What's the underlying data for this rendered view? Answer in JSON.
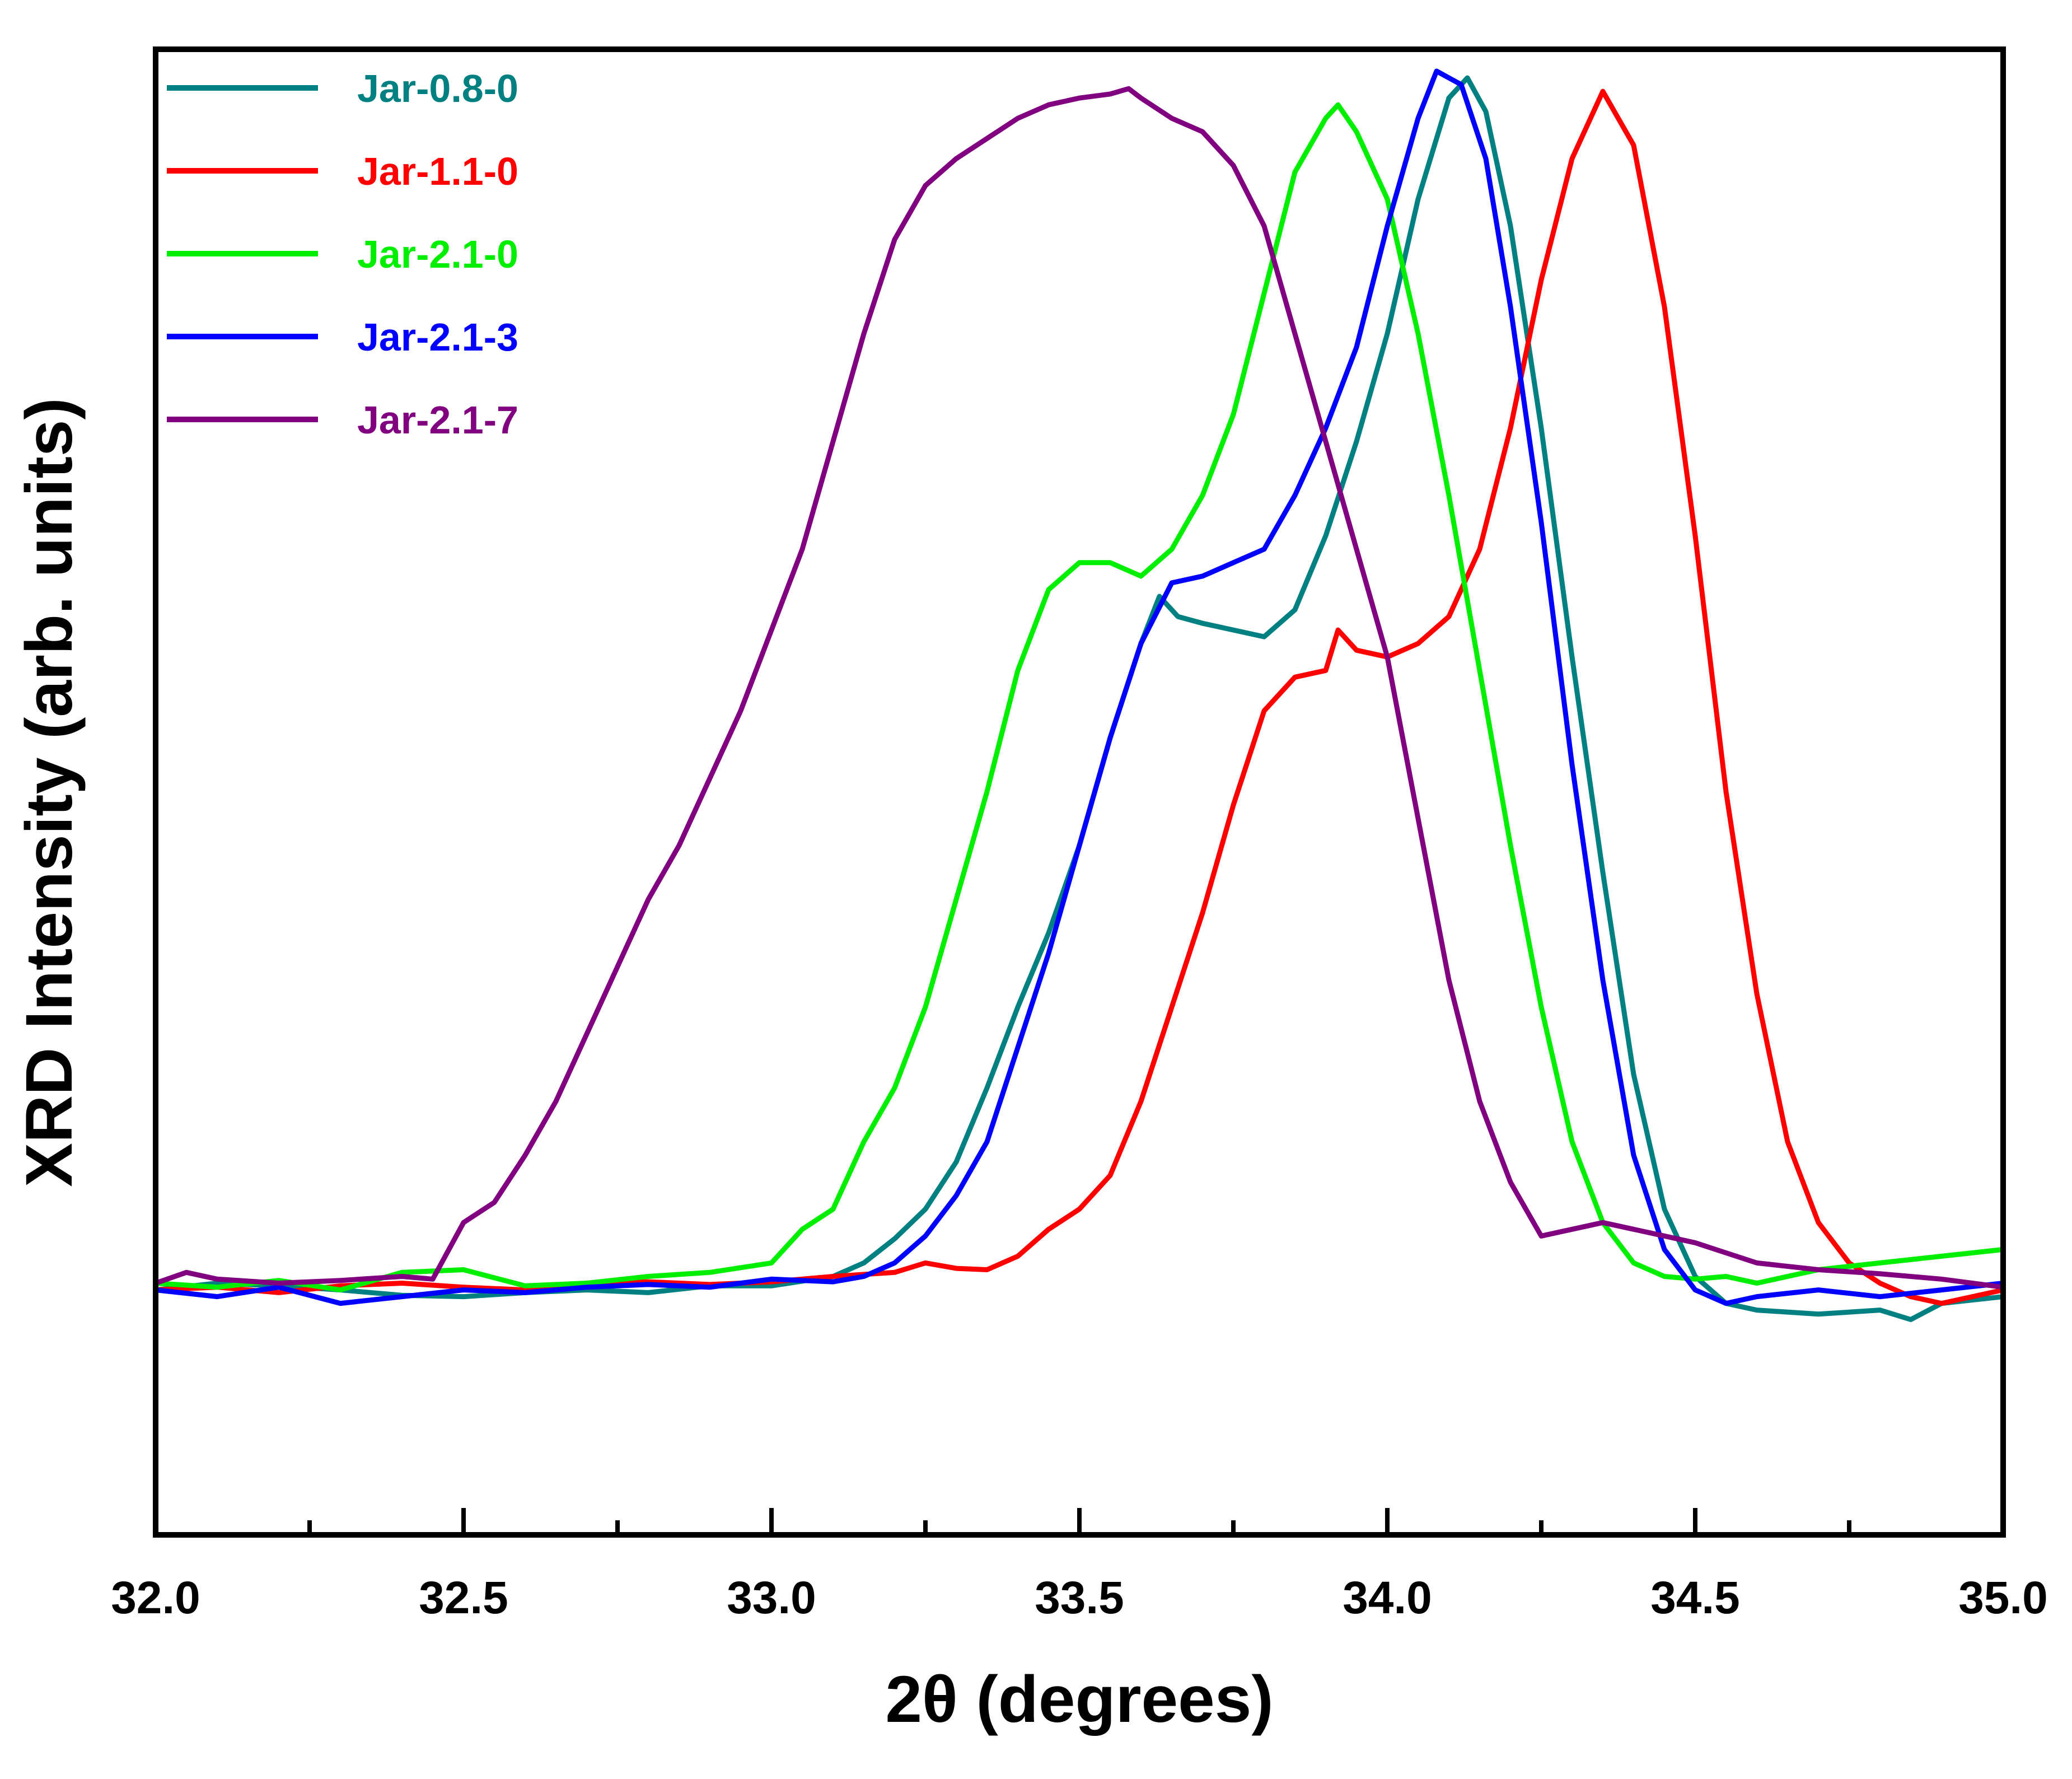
{
  "chart_data": {
    "type": "line",
    "title": "",
    "xlabel": "2θ (degrees)",
    "ylabel": "XRD Intensity (arb. units)",
    "xlim": [
      32.0,
      35.0
    ],
    "ylim": [
      0,
      1
    ],
    "x_ticks": [
      "32.0",
      "32.5",
      "33.0",
      "33.5",
      "34.0",
      "34.5",
      "35.0"
    ],
    "minor_ticks": [
      32.25,
      32.75,
      33.25,
      33.75,
      34.25,
      34.75
    ],
    "y_ticks": [],
    "grid": false,
    "legend_position": "top-left",
    "series": [
      {
        "name": "Jar-0.8-0",
        "color": "#008080",
        "points": [
          [
            32.0,
            0.09
          ],
          [
            32.1,
            0.095
          ],
          [
            32.2,
            0.093
          ],
          [
            32.3,
            0.09
          ],
          [
            32.4,
            0.086
          ],
          [
            32.5,
            0.085
          ],
          [
            32.6,
            0.088
          ],
          [
            32.7,
            0.09
          ],
          [
            32.8,
            0.088
          ],
          [
            32.9,
            0.093
          ],
          [
            33.0,
            0.093
          ],
          [
            33.1,
            0.1
          ],
          [
            33.15,
            0.11
          ],
          [
            33.2,
            0.128
          ],
          [
            33.25,
            0.15
          ],
          [
            33.3,
            0.185
          ],
          [
            33.35,
            0.24
          ],
          [
            33.4,
            0.3
          ],
          [
            33.45,
            0.355
          ],
          [
            33.5,
            0.42
          ],
          [
            33.55,
            0.5
          ],
          [
            33.6,
            0.57
          ],
          [
            33.63,
            0.605
          ],
          [
            33.66,
            0.59
          ],
          [
            33.7,
            0.585
          ],
          [
            33.75,
            0.58
          ],
          [
            33.8,
            0.575
          ],
          [
            33.85,
            0.595
          ],
          [
            33.9,
            0.65
          ],
          [
            33.95,
            0.72
          ],
          [
            34.0,
            0.8
          ],
          [
            34.05,
            0.9
          ],
          [
            34.1,
            0.975
          ],
          [
            34.13,
            0.99
          ],
          [
            34.16,
            0.965
          ],
          [
            34.2,
            0.88
          ],
          [
            34.25,
            0.73
          ],
          [
            34.3,
            0.56
          ],
          [
            34.35,
            0.4
          ],
          [
            34.4,
            0.25
          ],
          [
            34.45,
            0.15
          ],
          [
            34.5,
            0.1
          ],
          [
            34.55,
            0.08
          ],
          [
            34.6,
            0.075
          ],
          [
            34.7,
            0.072
          ],
          [
            34.8,
            0.075
          ],
          [
            34.85,
            0.068
          ],
          [
            34.9,
            0.08
          ],
          [
            35.0,
            0.085
          ]
        ]
      },
      {
        "name": "Jar-1.1-0",
        "color": "#ff0000",
        "points": [
          [
            32.0,
            0.09
          ],
          [
            32.1,
            0.092
          ],
          [
            32.2,
            0.088
          ],
          [
            32.3,
            0.093
          ],
          [
            32.4,
            0.095
          ],
          [
            32.5,
            0.092
          ],
          [
            32.6,
            0.09
          ],
          [
            32.7,
            0.095
          ],
          [
            32.8,
            0.096
          ],
          [
            32.9,
            0.094
          ],
          [
            33.0,
            0.096
          ],
          [
            33.1,
            0.1
          ],
          [
            33.2,
            0.103
          ],
          [
            33.25,
            0.11
          ],
          [
            33.3,
            0.106
          ],
          [
            33.35,
            0.105
          ],
          [
            33.4,
            0.115
          ],
          [
            33.45,
            0.135
          ],
          [
            33.5,
            0.15
          ],
          [
            33.55,
            0.175
          ],
          [
            33.6,
            0.23
          ],
          [
            33.65,
            0.3
          ],
          [
            33.7,
            0.37
          ],
          [
            33.75,
            0.45
          ],
          [
            33.8,
            0.52
          ],
          [
            33.85,
            0.545
          ],
          [
            33.9,
            0.55
          ],
          [
            33.92,
            0.58
          ],
          [
            33.95,
            0.565
          ],
          [
            34.0,
            0.56
          ],
          [
            34.05,
            0.57
          ],
          [
            34.1,
            0.59
          ],
          [
            34.15,
            0.64
          ],
          [
            34.2,
            0.73
          ],
          [
            34.25,
            0.84
          ],
          [
            34.3,
            0.93
          ],
          [
            34.35,
            0.98
          ],
          [
            34.4,
            0.94
          ],
          [
            34.45,
            0.82
          ],
          [
            34.5,
            0.65
          ],
          [
            34.55,
            0.46
          ],
          [
            34.6,
            0.31
          ],
          [
            34.65,
            0.2
          ],
          [
            34.7,
            0.14
          ],
          [
            34.75,
            0.11
          ],
          [
            34.8,
            0.095
          ],
          [
            34.85,
            0.085
          ],
          [
            34.9,
            0.08
          ],
          [
            35.0,
            0.09
          ]
        ]
      },
      {
        "name": "Jar-2.1-0",
        "color": "#00ee00",
        "points": [
          [
            32.0,
            0.095
          ],
          [
            32.1,
            0.092
          ],
          [
            32.2,
            0.097
          ],
          [
            32.3,
            0.09
          ],
          [
            32.4,
            0.103
          ],
          [
            32.5,
            0.105
          ],
          [
            32.6,
            0.093
          ],
          [
            32.7,
            0.095
          ],
          [
            32.8,
            0.1
          ],
          [
            32.9,
            0.103
          ],
          [
            33.0,
            0.11
          ],
          [
            33.05,
            0.135
          ],
          [
            33.1,
            0.15
          ],
          [
            33.15,
            0.2
          ],
          [
            33.2,
            0.24
          ],
          [
            33.25,
            0.3
          ],
          [
            33.3,
            0.38
          ],
          [
            33.35,
            0.46
          ],
          [
            33.4,
            0.55
          ],
          [
            33.45,
            0.61
          ],
          [
            33.5,
            0.63
          ],
          [
            33.55,
            0.63
          ],
          [
            33.6,
            0.62
          ],
          [
            33.65,
            0.64
          ],
          [
            33.7,
            0.68
          ],
          [
            33.75,
            0.74
          ],
          [
            33.8,
            0.83
          ],
          [
            33.85,
            0.92
          ],
          [
            33.9,
            0.96
          ],
          [
            33.92,
            0.97
          ],
          [
            33.95,
            0.95
          ],
          [
            34.0,
            0.9
          ],
          [
            34.05,
            0.8
          ],
          [
            34.1,
            0.68
          ],
          [
            34.15,
            0.55
          ],
          [
            34.2,
            0.42
          ],
          [
            34.25,
            0.3
          ],
          [
            34.3,
            0.2
          ],
          [
            34.35,
            0.14
          ],
          [
            34.4,
            0.11
          ],
          [
            34.45,
            0.1
          ],
          [
            34.5,
            0.098
          ],
          [
            34.55,
            0.1
          ],
          [
            34.6,
            0.095
          ],
          [
            34.65,
            0.1
          ],
          [
            34.7,
            0.105
          ],
          [
            34.8,
            0.11
          ],
          [
            34.9,
            0.115
          ],
          [
            35.0,
            0.12
          ]
        ]
      },
      {
        "name": "Jar-2.1-3",
        "color": "#0000ff",
        "points": [
          [
            32.0,
            0.09
          ],
          [
            32.1,
            0.085
          ],
          [
            32.2,
            0.092
          ],
          [
            32.3,
            0.08
          ],
          [
            32.4,
            0.085
          ],
          [
            32.5,
            0.09
          ],
          [
            32.6,
            0.088
          ],
          [
            32.7,
            0.092
          ],
          [
            32.8,
            0.094
          ],
          [
            32.9,
            0.092
          ],
          [
            33.0,
            0.098
          ],
          [
            33.1,
            0.096
          ],
          [
            33.15,
            0.1
          ],
          [
            33.2,
            0.11
          ],
          [
            33.25,
            0.13
          ],
          [
            33.3,
            0.16
          ],
          [
            33.35,
            0.2
          ],
          [
            33.4,
            0.27
          ],
          [
            33.45,
            0.34
          ],
          [
            33.5,
            0.42
          ],
          [
            33.55,
            0.5
          ],
          [
            33.6,
            0.57
          ],
          [
            33.65,
            0.615
          ],
          [
            33.7,
            0.62
          ],
          [
            33.75,
            0.63
          ],
          [
            33.8,
            0.64
          ],
          [
            33.85,
            0.68
          ],
          [
            33.9,
            0.73
          ],
          [
            33.95,
            0.79
          ],
          [
            34.0,
            0.88
          ],
          [
            34.05,
            0.96
          ],
          [
            34.08,
            0.995
          ],
          [
            34.12,
            0.985
          ],
          [
            34.16,
            0.93
          ],
          [
            34.2,
            0.82
          ],
          [
            34.25,
            0.66
          ],
          [
            34.3,
            0.48
          ],
          [
            34.35,
            0.32
          ],
          [
            34.4,
            0.19
          ],
          [
            34.45,
            0.12
          ],
          [
            34.5,
            0.09
          ],
          [
            34.55,
            0.08
          ],
          [
            34.6,
            0.085
          ],
          [
            34.7,
            0.09
          ],
          [
            34.8,
            0.085
          ],
          [
            34.9,
            0.09
          ],
          [
            35.0,
            0.095
          ]
        ]
      },
      {
        "name": "Jar-2.1-7",
        "color": "#800080",
        "points": [
          [
            32.0,
            0.095
          ],
          [
            32.05,
            0.103
          ],
          [
            32.1,
            0.098
          ],
          [
            32.2,
            0.095
          ],
          [
            32.3,
            0.097
          ],
          [
            32.4,
            0.1
          ],
          [
            32.45,
            0.098
          ],
          [
            32.5,
            0.14
          ],
          [
            32.55,
            0.155
          ],
          [
            32.6,
            0.19
          ],
          [
            32.65,
            0.23
          ],
          [
            32.7,
            0.28
          ],
          [
            32.75,
            0.33
          ],
          [
            32.8,
            0.38
          ],
          [
            32.85,
            0.42
          ],
          [
            32.9,
            0.47
          ],
          [
            32.95,
            0.52
          ],
          [
            33.0,
            0.58
          ],
          [
            33.05,
            0.64
          ],
          [
            33.1,
            0.72
          ],
          [
            33.15,
            0.8
          ],
          [
            33.2,
            0.87
          ],
          [
            33.25,
            0.91
          ],
          [
            33.3,
            0.93
          ],
          [
            33.35,
            0.945
          ],
          [
            33.4,
            0.96
          ],
          [
            33.45,
            0.97
          ],
          [
            33.5,
            0.975
          ],
          [
            33.55,
            0.978
          ],
          [
            33.58,
            0.982
          ],
          [
            33.6,
            0.975
          ],
          [
            33.65,
            0.96
          ],
          [
            33.7,
            0.95
          ],
          [
            33.75,
            0.925
          ],
          [
            33.8,
            0.88
          ],
          [
            33.85,
            0.8
          ],
          [
            33.9,
            0.72
          ],
          [
            33.95,
            0.64
          ],
          [
            34.0,
            0.56
          ],
          [
            34.05,
            0.44
          ],
          [
            34.1,
            0.32
          ],
          [
            34.15,
            0.23
          ],
          [
            34.2,
            0.17
          ],
          [
            34.25,
            0.13
          ],
          [
            34.3,
            0.135
          ],
          [
            34.35,
            0.14
          ],
          [
            34.4,
            0.135
          ],
          [
            34.45,
            0.13
          ],
          [
            34.5,
            0.125
          ],
          [
            34.6,
            0.11
          ],
          [
            34.7,
            0.105
          ],
          [
            34.8,
            0.102
          ],
          [
            34.9,
            0.098
          ],
          [
            35.0,
            0.092
          ]
        ]
      }
    ]
  }
}
